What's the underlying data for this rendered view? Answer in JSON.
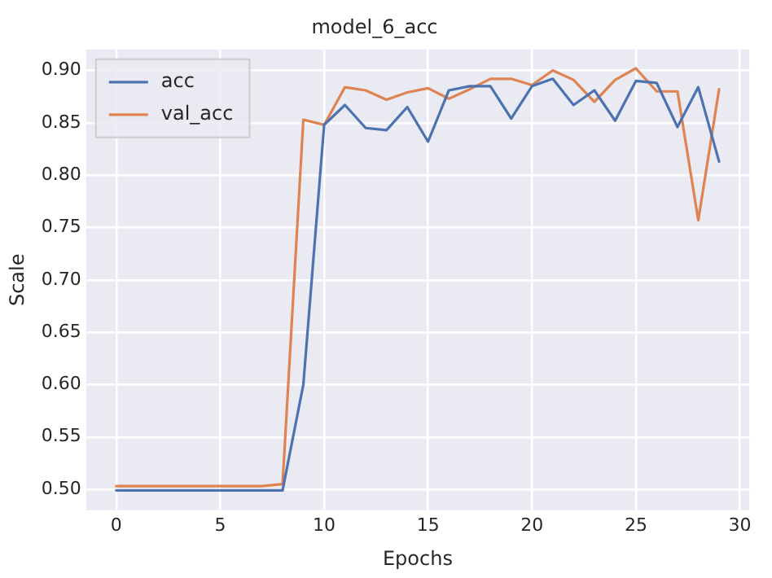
{
  "chart_data": {
    "type": "line",
    "title": "model_6_acc",
    "xlabel": "Epochs",
    "ylabel": "Scale",
    "x": [
      0,
      1,
      2,
      3,
      4,
      5,
      6,
      7,
      8,
      9,
      10,
      11,
      12,
      13,
      14,
      15,
      16,
      17,
      18,
      19,
      20,
      21,
      22,
      23,
      24,
      25,
      26,
      27,
      28,
      29
    ],
    "series": [
      {
        "name": "acc",
        "color": "#4c72b0",
        "values": [
          0.499,
          0.499,
          0.499,
          0.499,
          0.499,
          0.499,
          0.499,
          0.499,
          0.499,
          0.6,
          0.848,
          0.867,
          0.845,
          0.843,
          0.865,
          0.832,
          0.881,
          0.885,
          0.885,
          0.854,
          0.885,
          0.892,
          0.867,
          0.881,
          0.852,
          0.89,
          0.888,
          0.846,
          0.884,
          0.813
        ]
      },
      {
        "name": "val_acc",
        "color": "#dd8452",
        "values": [
          0.503,
          0.503,
          0.503,
          0.503,
          0.503,
          0.503,
          0.503,
          0.503,
          0.505,
          0.853,
          0.848,
          0.884,
          0.881,
          0.872,
          0.879,
          0.883,
          0.873,
          0.882,
          0.892,
          0.892,
          0.886,
          0.9,
          0.891,
          0.87,
          0.891,
          0.902,
          0.88,
          0.88,
          0.757,
          0.882
        ]
      }
    ],
    "xlim": [
      -1.45,
      30.45
    ],
    "xticks": [
      0,
      5,
      10,
      15,
      20,
      25,
      30
    ],
    "ylim": [
      0.48,
      0.92
    ],
    "yticks": [
      {
        "value": 0.5,
        "label": "0.50"
      },
      {
        "value": 0.55,
        "label": "0.55"
      },
      {
        "value": 0.6,
        "label": "0.60"
      },
      {
        "value": 0.65,
        "label": "0.65"
      },
      {
        "value": 0.7,
        "label": "0.70"
      },
      {
        "value": 0.75,
        "label": "0.75"
      },
      {
        "value": 0.8,
        "label": "0.80"
      },
      {
        "value": 0.85,
        "label": "0.85"
      },
      {
        "value": 0.9,
        "label": "0.90"
      }
    ],
    "grid": true,
    "legend": "top left",
    "marker": "none",
    "line_style": "solid"
  }
}
